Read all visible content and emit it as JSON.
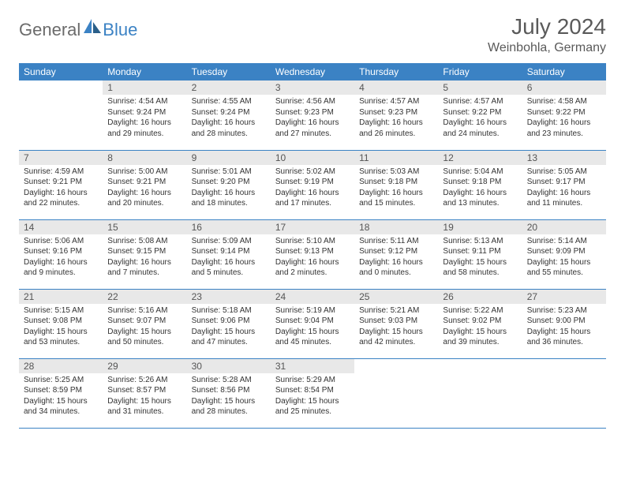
{
  "logo": {
    "text1": "General",
    "text2": "Blue"
  },
  "title": "July 2024",
  "location": "Weinbohla, Germany",
  "colors": {
    "header_bg": "#3b82c4",
    "header_text": "#ffffff",
    "daynum_bg": "#e8e8e8",
    "border": "#3b82c4",
    "logo_gray": "#6b6b6b",
    "logo_blue": "#3b82c4"
  },
  "weekdays": [
    "Sunday",
    "Monday",
    "Tuesday",
    "Wednesday",
    "Thursday",
    "Friday",
    "Saturday"
  ],
  "weeks": [
    [
      null,
      {
        "n": "1",
        "sr": "4:54 AM",
        "ss": "9:24 PM",
        "dl": "16 hours and 29 minutes."
      },
      {
        "n": "2",
        "sr": "4:55 AM",
        "ss": "9:24 PM",
        "dl": "16 hours and 28 minutes."
      },
      {
        "n": "3",
        "sr": "4:56 AM",
        "ss": "9:23 PM",
        "dl": "16 hours and 27 minutes."
      },
      {
        "n": "4",
        "sr": "4:57 AM",
        "ss": "9:23 PM",
        "dl": "16 hours and 26 minutes."
      },
      {
        "n": "5",
        "sr": "4:57 AM",
        "ss": "9:22 PM",
        "dl": "16 hours and 24 minutes."
      },
      {
        "n": "6",
        "sr": "4:58 AM",
        "ss": "9:22 PM",
        "dl": "16 hours and 23 minutes."
      }
    ],
    [
      {
        "n": "7",
        "sr": "4:59 AM",
        "ss": "9:21 PM",
        "dl": "16 hours and 22 minutes."
      },
      {
        "n": "8",
        "sr": "5:00 AM",
        "ss": "9:21 PM",
        "dl": "16 hours and 20 minutes."
      },
      {
        "n": "9",
        "sr": "5:01 AM",
        "ss": "9:20 PM",
        "dl": "16 hours and 18 minutes."
      },
      {
        "n": "10",
        "sr": "5:02 AM",
        "ss": "9:19 PM",
        "dl": "16 hours and 17 minutes."
      },
      {
        "n": "11",
        "sr": "5:03 AM",
        "ss": "9:18 PM",
        "dl": "16 hours and 15 minutes."
      },
      {
        "n": "12",
        "sr": "5:04 AM",
        "ss": "9:18 PM",
        "dl": "16 hours and 13 minutes."
      },
      {
        "n": "13",
        "sr": "5:05 AM",
        "ss": "9:17 PM",
        "dl": "16 hours and 11 minutes."
      }
    ],
    [
      {
        "n": "14",
        "sr": "5:06 AM",
        "ss": "9:16 PM",
        "dl": "16 hours and 9 minutes."
      },
      {
        "n": "15",
        "sr": "5:08 AM",
        "ss": "9:15 PM",
        "dl": "16 hours and 7 minutes."
      },
      {
        "n": "16",
        "sr": "5:09 AM",
        "ss": "9:14 PM",
        "dl": "16 hours and 5 minutes."
      },
      {
        "n": "17",
        "sr": "5:10 AM",
        "ss": "9:13 PM",
        "dl": "16 hours and 2 minutes."
      },
      {
        "n": "18",
        "sr": "5:11 AM",
        "ss": "9:12 PM",
        "dl": "16 hours and 0 minutes."
      },
      {
        "n": "19",
        "sr": "5:13 AM",
        "ss": "9:11 PM",
        "dl": "15 hours and 58 minutes."
      },
      {
        "n": "20",
        "sr": "5:14 AM",
        "ss": "9:09 PM",
        "dl": "15 hours and 55 minutes."
      }
    ],
    [
      {
        "n": "21",
        "sr": "5:15 AM",
        "ss": "9:08 PM",
        "dl": "15 hours and 53 minutes."
      },
      {
        "n": "22",
        "sr": "5:16 AM",
        "ss": "9:07 PM",
        "dl": "15 hours and 50 minutes."
      },
      {
        "n": "23",
        "sr": "5:18 AM",
        "ss": "9:06 PM",
        "dl": "15 hours and 47 minutes."
      },
      {
        "n": "24",
        "sr": "5:19 AM",
        "ss": "9:04 PM",
        "dl": "15 hours and 45 minutes."
      },
      {
        "n": "25",
        "sr": "5:21 AM",
        "ss": "9:03 PM",
        "dl": "15 hours and 42 minutes."
      },
      {
        "n": "26",
        "sr": "5:22 AM",
        "ss": "9:02 PM",
        "dl": "15 hours and 39 minutes."
      },
      {
        "n": "27",
        "sr": "5:23 AM",
        "ss": "9:00 PM",
        "dl": "15 hours and 36 minutes."
      }
    ],
    [
      {
        "n": "28",
        "sr": "5:25 AM",
        "ss": "8:59 PM",
        "dl": "15 hours and 34 minutes."
      },
      {
        "n": "29",
        "sr": "5:26 AM",
        "ss": "8:57 PM",
        "dl": "15 hours and 31 minutes."
      },
      {
        "n": "30",
        "sr": "5:28 AM",
        "ss": "8:56 PM",
        "dl": "15 hours and 28 minutes."
      },
      {
        "n": "31",
        "sr": "5:29 AM",
        "ss": "8:54 PM",
        "dl": "15 hours and 25 minutes."
      },
      null,
      null,
      null
    ]
  ],
  "labels": {
    "sunrise": "Sunrise:",
    "sunset": "Sunset:",
    "daylight": "Daylight:"
  }
}
